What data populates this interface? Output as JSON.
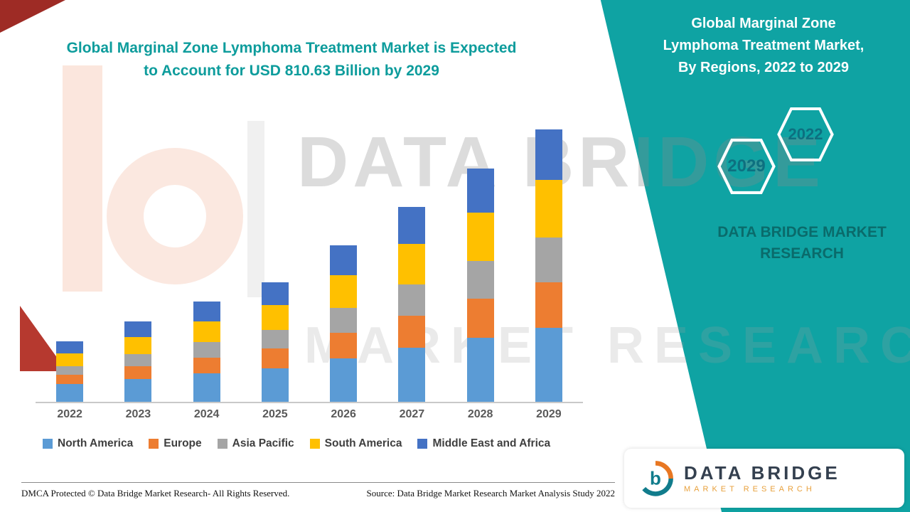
{
  "title": {
    "text": "Global Marginal Zone Lymphoma Treatment Market is Expected\nto Account for USD 810.63 Billion by 2029"
  },
  "side_panel": {
    "heading": "Global Marginal Zone\nLymphoma Treatment Market,\nBy Regions, 2022 to 2029",
    "hexagon_left_year": "2029",
    "hexagon_right_year": "2022",
    "brand_caption": "DATA BRIDGE MARKET\nRESEARCH",
    "panel_color": "#0FA3A3"
  },
  "watermark": {
    "line1": "DATA BRIDGE",
    "line2": "MARKET RESEARCH"
  },
  "chart_data": {
    "type": "bar",
    "stacked": true,
    "title": "Global Marginal Zone Lymphoma Treatment Market, By Regions, 2022 to 2029",
    "categories": [
      "2022",
      "2023",
      "2024",
      "2025",
      "2026",
      "2027",
      "2028",
      "2029"
    ],
    "series": [
      {
        "name": "North America",
        "color": "#5B9BD5",
        "values": [
          52,
          68,
          84,
          100,
          130,
          160,
          190,
          220
        ]
      },
      {
        "name": "Europe",
        "color": "#ED7D31",
        "values": [
          28,
          38,
          48,
          58,
          76,
          96,
          116,
          136
        ]
      },
      {
        "name": "Asia Pacific",
        "color": "#A5A5A5",
        "values": [
          26,
          36,
          46,
          56,
          74,
          94,
          114,
          134
        ]
      },
      {
        "name": "South America",
        "color": "#FFC000",
        "values": [
          38,
          50,
          62,
          74,
          96,
          120,
          144,
          170
        ]
      },
      {
        "name": "Middle East and Africa",
        "color": "#4472C4",
        "values": [
          36,
          48,
          58,
          68,
          90,
          110,
          130,
          150.63
        ]
      }
    ],
    "totals": [
      180,
      240,
      298,
      356,
      466,
      580,
      694,
      810.63
    ],
    "values_estimated": true,
    "unit": "USD Billion",
    "xlabel": "",
    "ylabel": "",
    "ylim": [
      0,
      850
    ],
    "grid": false,
    "legend_position": "bottom"
  },
  "footer": {
    "dmca": "DMCA Protected © Data Bridge Market Research- All Rights Reserved.",
    "source": "Source: Data Bridge Market Research Market Analysis Study 2022"
  },
  "logo_card": {
    "brand": "DATA BRIDGE",
    "sub": "MARKET RESEARCH"
  }
}
